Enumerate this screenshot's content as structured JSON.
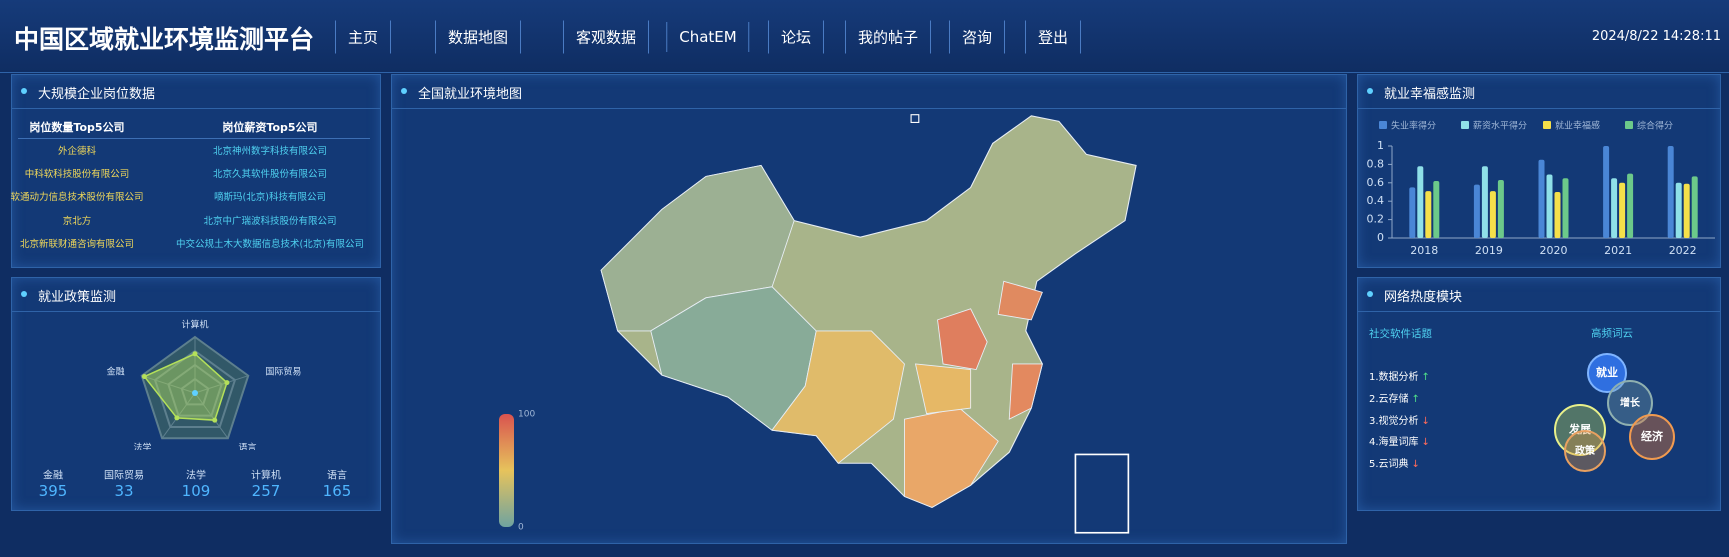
{
  "header": {
    "title": "中国区域就业环境监测平台",
    "nav": [
      "主页",
      "数据地图",
      "客观数据",
      "ChatEM",
      "论坛",
      "我的帖子",
      "咨询",
      "登出"
    ],
    "datetime": "2024/8/22 14:28:11"
  },
  "jobs": {
    "title": "大规模企业岗位数据",
    "columns": [
      "岗位数量Top5公司",
      "岗位薪资Top5公司"
    ],
    "rows": [
      [
        "外企德科",
        "北京神州数字科技有限公司"
      ],
      [
        "中科软科技股份有限公司",
        "北京久其软件股份有限公司"
      ],
      [
        "软通动力信息技术股份有限公司",
        "嘀斯玛(北京)科技有限公司"
      ],
      [
        "京北方",
        "北京中广瑞波科技股份有限公司"
      ],
      [
        "北京新联财通咨询有限公司",
        "中交公规土木大数据信息技术(北京)有限公司"
      ]
    ]
  },
  "policy": {
    "title": "就业政策监测",
    "stats": [
      {
        "label": "金融",
        "value": 395
      },
      {
        "label": "国际贸易",
        "value": 33
      },
      {
        "label": "法学",
        "value": 109
      },
      {
        "label": "计算机",
        "value": 257
      },
      {
        "label": "语言",
        "value": 165
      }
    ]
  },
  "map": {
    "title": "全国就业环境地图",
    "visual_map": [
      0,
      100
    ]
  },
  "happiness": {
    "title": "就业幸福感监测"
  },
  "heat": {
    "title": "网络热度模块",
    "topics_title": "社交软件话题",
    "topics": [
      {
        "label": "1.数据分析",
        "trend": "↑"
      },
      {
        "label": "2.云存储",
        "trend": "↑"
      },
      {
        "label": "3.视觉分析",
        "trend": "↓"
      },
      {
        "label": "4.海量词库",
        "trend": "↓"
      },
      {
        "label": "5.云词典",
        "trend": "↓"
      }
    ],
    "cloud_title": "高频词云",
    "words": [
      "就业",
      "增长",
      "发展",
      "政策",
      "经济"
    ]
  },
  "chart_data": [
    {
      "type": "bar",
      "categories": [
        "2018",
        "2019",
        "2020",
        "2021",
        "2022"
      ],
      "ylim": [
        0,
        1
      ],
      "yticks": [
        0,
        0.2,
        0.4,
        0.6,
        0.8,
        1
      ],
      "series": [
        {
          "name": "失业率得分",
          "color": "#4a86d6",
          "values": [
            0.55,
            0.58,
            0.85,
            1.0,
            1.0
          ]
        },
        {
          "name": "薪资水平得分",
          "color": "#8fe0e8",
          "values": [
            0.78,
            0.78,
            0.69,
            0.65,
            0.6
          ]
        },
        {
          "name": "就业幸福感",
          "color": "#f5e04a",
          "values": [
            0.51,
            0.51,
            0.5,
            0.6,
            0.59
          ]
        },
        {
          "name": "综合得分",
          "color": "#6cc98a",
          "values": [
            0.62,
            0.63,
            0.65,
            0.7,
            0.67
          ]
        }
      ]
    },
    {
      "type": "radar",
      "indicators": [
        "计算机",
        "国际贸易",
        "语言",
        "法学",
        "金融"
      ],
      "values": [
        0.7,
        0.6,
        0.6,
        0.55,
        0.95
      ],
      "rlim": [
        0,
        1
      ],
      "color": "#b4e05a"
    }
  ]
}
